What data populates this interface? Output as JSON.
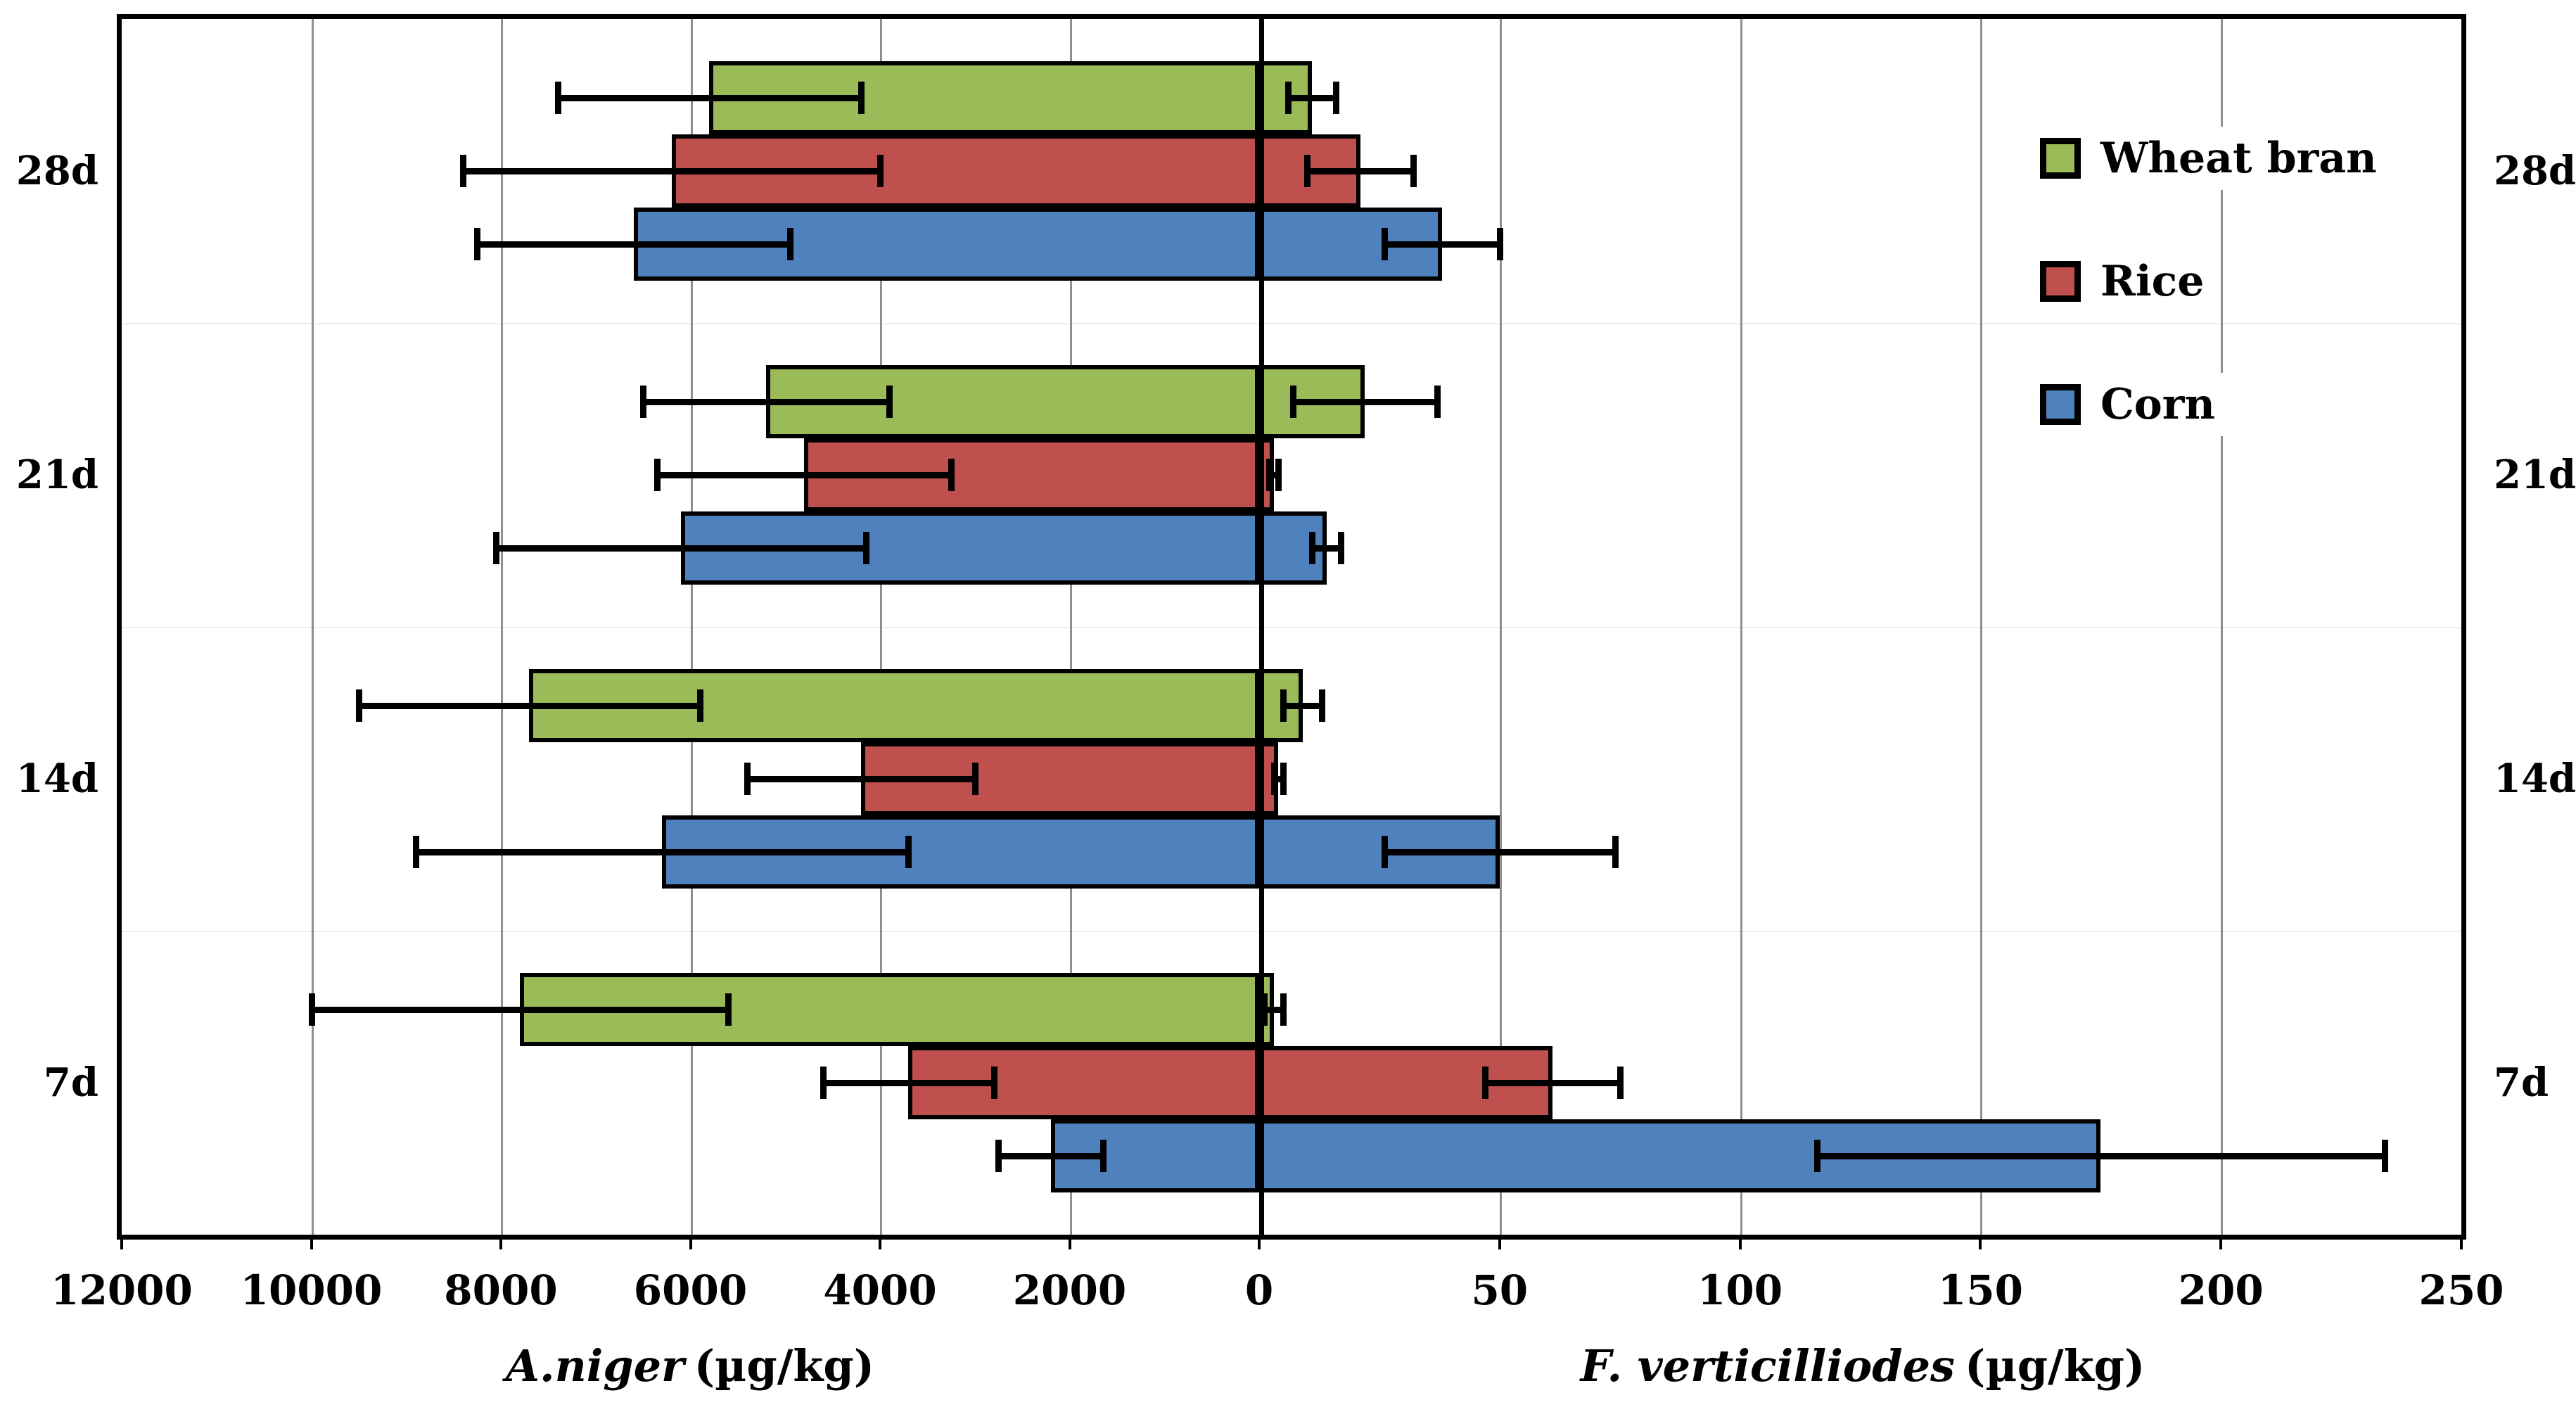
{
  "chart_data": {
    "type": "bar",
    "orientation": "horizontal-diverging",
    "grid": true,
    "legend_position": "upper-right-inside",
    "categories": [
      "28d",
      "21d",
      "14d",
      "7d"
    ],
    "series": [
      {
        "name": "Wheat bran",
        "color": "#9BBB59",
        "a_niger": {
          "values": [
            5800,
            5200,
            7700,
            7800
          ],
          "errors": [
            1600,
            1300,
            1800,
            2200
          ]
        },
        "f_verticilliodes": {
          "values": [
            11,
            22,
            9,
            3
          ],
          "errors": [
            5,
            15,
            4,
            2
          ]
        }
      },
      {
        "name": "Rice",
        "color": "#C0504D",
        "a_niger": {
          "values": [
            6200,
            4800,
            4200,
            3700
          ],
          "errors": [
            2200,
            1550,
            1200,
            900
          ]
        },
        "f_verticilliodes": {
          "values": [
            21,
            3,
            4,
            61
          ],
          "errors": [
            11,
            1,
            1,
            14
          ]
        }
      },
      {
        "name": "Corn",
        "color": "#4F81BD",
        "a_niger": {
          "values": [
            6600,
            6100,
            6300,
            2200
          ],
          "errors": [
            1650,
            1950,
            2600,
            550
          ]
        },
        "f_verticilliodes": {
          "values": [
            38,
            14,
            50,
            175
          ],
          "errors": [
            12,
            3,
            24,
            59
          ]
        }
      }
    ],
    "left_axis": {
      "species": "A.niger",
      "units": "(µg/kg)",
      "ticks": [
        12000,
        10000,
        8000,
        6000,
        4000,
        2000,
        0
      ],
      "max": 12000
    },
    "right_axis": {
      "species": "F. verticilliodes",
      "units": "(µg/kg)",
      "ticks": [
        0,
        50,
        100,
        150,
        200,
        250
      ],
      "max": 250
    },
    "row_labels_left": [
      "28d",
      "21d",
      "14d",
      "7d"
    ],
    "row_labels_right": [
      "28d",
      "21d",
      "14d",
      "7d"
    ],
    "legend": [
      "Wheat bran",
      "Rice",
      "Corn"
    ]
  }
}
